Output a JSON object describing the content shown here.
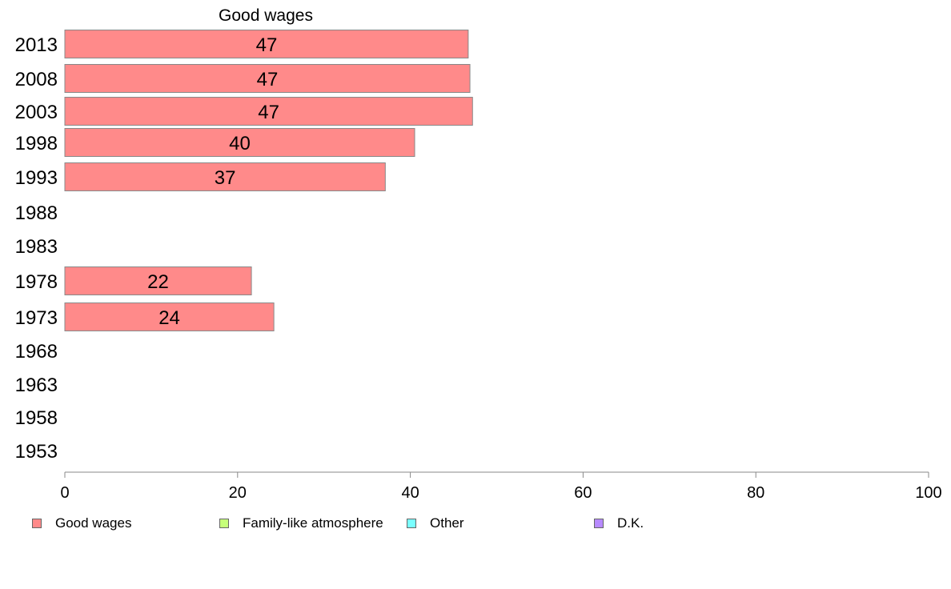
{
  "chart_data": {
    "type": "bar",
    "orientation": "horizontal",
    "title": "Good wages",
    "categories": [
      "2013",
      "2008",
      "2003",
      "1998",
      "1993",
      "1988",
      "1983",
      "1978",
      "1973",
      "1968",
      "1963",
      "1958",
      "1953"
    ],
    "series": [
      {
        "name": "Good wages",
        "color": "#ff8a8a",
        "values": [
          46.7,
          46.9,
          47.2,
          40.5,
          37.1,
          null,
          null,
          21.6,
          24.2,
          null,
          null,
          null,
          null
        ]
      }
    ],
    "data_labels": [
      "47",
      "47",
      "47",
      "40",
      "37",
      "",
      "",
      "22",
      "24",
      "",
      "",
      "",
      ""
    ],
    "xlim": [
      0,
      100
    ],
    "xticks": [
      "0",
      "20",
      "40",
      "60",
      "80",
      "100"
    ],
    "xlabel": "",
    "ylabel": "",
    "grid": false,
    "legend": {
      "placement": "bottom",
      "items": [
        {
          "label": "Good wages",
          "color": "#ff8a8a"
        },
        {
          "label": "Family-like atmosphere",
          "color": "#c6ff7a"
        },
        {
          "label": "Other",
          "color": "#7affff"
        },
        {
          "label": "D.K.",
          "color": "#b78aff"
        }
      ]
    }
  }
}
